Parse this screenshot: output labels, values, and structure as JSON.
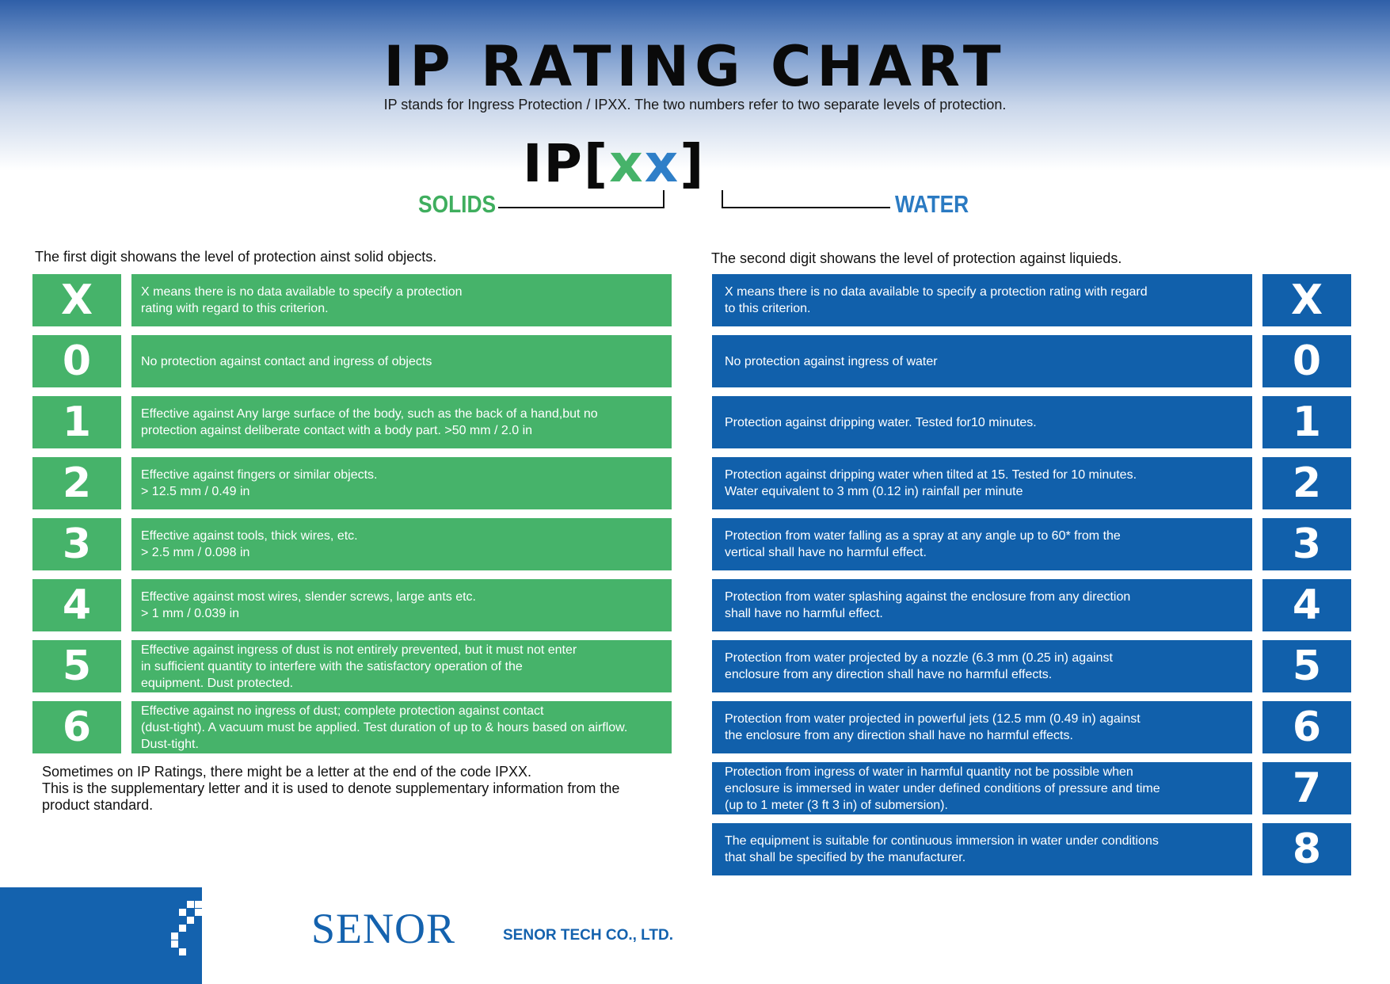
{
  "header": {
    "title": "IP RATING CHART",
    "subtitle": "IP stands for Ingress Protection   /   IPXX. The two numbers refer to two separate levels of protection.",
    "code_prefix": "IP[",
    "code_x1": "x",
    "code_x2": "x",
    "code_suffix": "]",
    "solids_label": "SOLIDS",
    "water_label": "WATER"
  },
  "solids": {
    "caption": "The first digit showans the level of protection  ainst solid objects.",
    "rows": [
      {
        "digit": "X",
        "lines": [
          "X means there is no data available to specify a protection",
          "rating with regard to this criterion."
        ]
      },
      {
        "digit": "0",
        "lines": [
          "No protection against contact and ingress of objects"
        ]
      },
      {
        "digit": "1",
        "lines": [
          "Effective against Any large surface of the body, such as the back of a hand,but no",
          "protection against deliberate contact with a body part. >50 mm / 2.0 in"
        ]
      },
      {
        "digit": "2",
        "lines": [
          "Effective against fingers or similar objects.",
          "> 12.5 mm / 0.49 in"
        ]
      },
      {
        "digit": "3",
        "lines": [
          "Effective against tools, thick wires, etc.",
          "> 2.5 mm / 0.098 in"
        ]
      },
      {
        "digit": "4",
        "lines": [
          "Effective against most wires, slender screws, large ants etc.",
          "> 1 mm / 0.039 in"
        ]
      },
      {
        "digit": "5",
        "lines": [
          "Effective against ingress of dust is not entirely prevented, but it must not enter",
          "in sufficient quantity to interfere with the satisfactory operation of the",
          "equipment. Dust protected."
        ]
      },
      {
        "digit": "6",
        "lines": [
          "Effective against no ingress of dust; complete protection against contact",
          "(dust-tight). A vacuum must be applied. Test duration of up to & hours based on airflow.",
          "Dust-tight."
        ]
      }
    ]
  },
  "water": {
    "caption": "The second digit showans the level of protection against liquieds.",
    "rows": [
      {
        "digit": "X",
        "lines": [
          "X means there is no data available to specify a protection rating with regard",
          "to this criterion."
        ]
      },
      {
        "digit": "0",
        "lines": [
          "No protection against ingress of water"
        ]
      },
      {
        "digit": "1",
        "lines": [
          "Protection against dripping water. Tested for10 minutes."
        ]
      },
      {
        "digit": "2",
        "lines": [
          "Protection against dripping water when tilted at 15. Tested for 10 minutes.",
          "Water equivalent to 3 mm (0.12 in) rainfall per minute"
        ]
      },
      {
        "digit": "3",
        "lines": [
          "Protection from water falling as a spray at any angle up to 60* from the",
          "vertical shall have no harmful effect."
        ]
      },
      {
        "digit": "4",
        "lines": [
          "Protection from water splashing against the enclosure from any direction",
          "shall have no harmful effect."
        ]
      },
      {
        "digit": "5",
        "lines": [
          "Protection from water projected by a nozzle (6.3 mm (0.25 in) against",
          "enclosure from any direction shall have no harmful effects."
        ]
      },
      {
        "digit": "6",
        "lines": [
          "Protection from water projected in powerful jets (12.5 mm (0.49 in) against",
          "the enclosure from any direction shall have no harmful effects."
        ]
      },
      {
        "digit": "7",
        "lines": [
          "Protection from ingress of water in harmful quantity not be possible when",
          "enclosure is immersed in water under defined conditions of pressure and time",
          "(up to 1 meter (3 ft 3 in) of submersion)."
        ]
      },
      {
        "digit": "8",
        "lines": [
          "The equipment is suitable for continuous immersion in water under conditions",
          "that shall be specified by the manufacturer."
        ]
      }
    ]
  },
  "note": {
    "lines": [
      "Sometimes on IP Ratings, there might be a letter at the end of the code IPXX.",
      "This is the supplementary letter and it is used to denote supplementary information from the",
      "product standard."
    ]
  },
  "footer": {
    "logo_text": "SENOR",
    "company": "SENOR TECH CO., LTD."
  },
  "colors": {
    "green": "#46b36a",
    "blue": "#1160ab",
    "header_blue": "#2f5fa8"
  }
}
